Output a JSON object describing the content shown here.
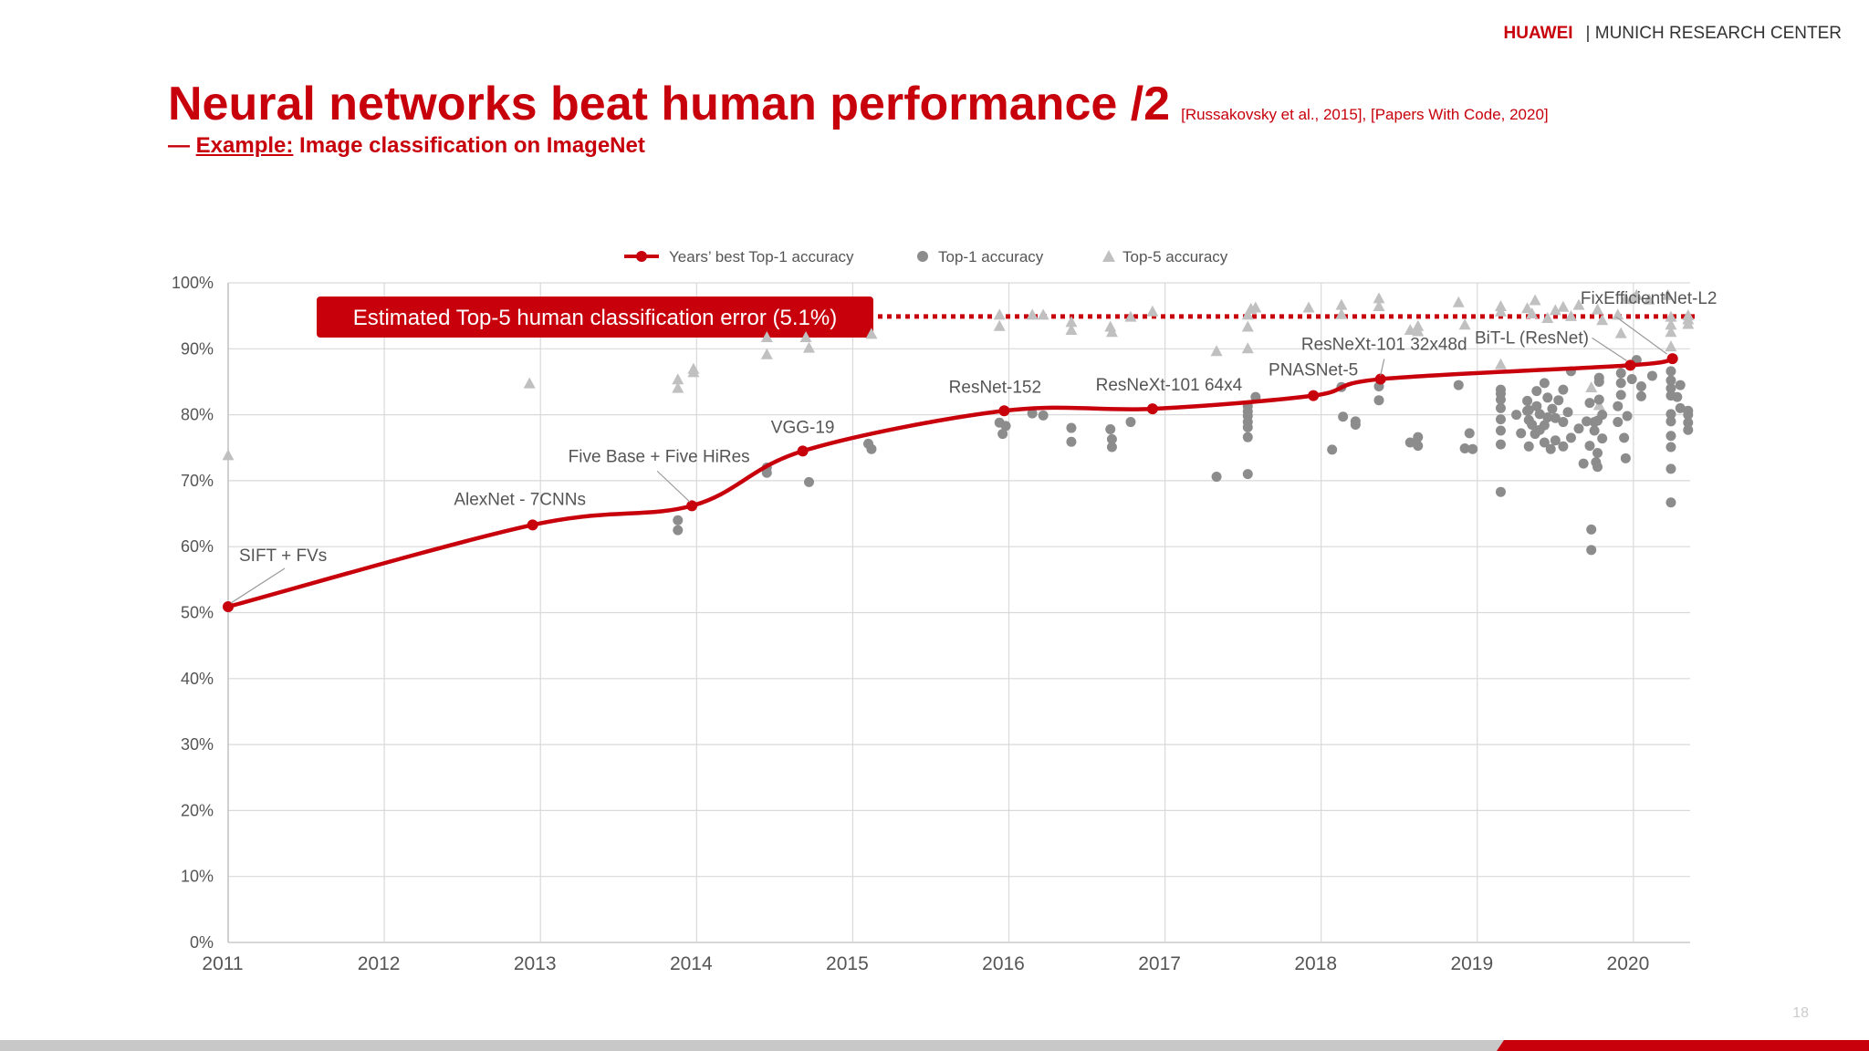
{
  "header": {
    "brand": "HUAWEI",
    "org": "| MUNICH RESEARCH CENTER"
  },
  "slide": {
    "title": "Neural networks beat human performance /2",
    "references": "[Russakovsky et al., 2015], [Papers With Code, 2020]",
    "subtitle_prefix": "— ",
    "subtitle_example": "Example:",
    "subtitle_rest": " Image classification on ImageNet",
    "page_number": "18"
  },
  "colors": {
    "accent": "#c7000b",
    "top1": "#8c8c8c",
    "top5": "#c0c0c0",
    "grid": "#d9d9d9"
  },
  "chart_data": {
    "type": "scatter",
    "xlim": [
      2011,
      2020.4
    ],
    "ylim": [
      0,
      100
    ],
    "x_ticks": [
      "2011",
      "2012",
      "2013",
      "2014",
      "2015",
      "2016",
      "2017",
      "2018",
      "2019",
      "2020"
    ],
    "y_ticks": [
      "0%",
      "10%",
      "20%",
      "30%",
      "40%",
      "50%",
      "60%",
      "70%",
      "80%",
      "90%",
      "100%"
    ],
    "grid": true,
    "legend_position": "top",
    "legend": [
      "Years’ best Top-1 accuracy",
      "Top-1 accuracy",
      "Top-5 accuracy"
    ],
    "human_error": {
      "label": "Estimated Top-5 human classification error (5.1%)",
      "y": 94.9
    },
    "series": [
      {
        "name": "Years’ best Top-1 accuracy",
        "type": "line",
        "points": [
          {
            "x": 2011.0,
            "y": 50.9,
            "label": "SIFT + FVs"
          },
          {
            "x": 2012.95,
            "y": 63.3,
            "label": "AlexNet - 7CNNs"
          },
          {
            "x": 2013.97,
            "y": 66.2,
            "label": "Five Base + Five HiRes"
          },
          {
            "x": 2014.68,
            "y": 74.5,
            "label": "VGG-19"
          },
          {
            "x": 2015.97,
            "y": 80.6,
            "label": "ResNet-152"
          },
          {
            "x": 2016.92,
            "y": 80.9,
            "label": "ResNeXt-101 64x4"
          },
          {
            "x": 2017.95,
            "y": 82.9,
            "label": "PNASNet-5"
          },
          {
            "x": 2018.38,
            "y": 85.4,
            "label": "ResNeXt-101 32x48d"
          },
          {
            "x": 2019.98,
            "y": 87.5,
            "label": "BiT-L (ResNet)"
          },
          {
            "x": 2020.25,
            "y": 88.5,
            "label": "FixEfficientNet-L2"
          }
        ]
      },
      {
        "name": "Top-1 accuracy",
        "type": "scatter",
        "points": [
          [
            13.88,
            64
          ],
          [
            13.88,
            62.5
          ],
          [
            14.45,
            72
          ],
          [
            14.45,
            71.2
          ],
          [
            14.72,
            69.8
          ],
          [
            15.1,
            75.6
          ],
          [
            15.12,
            74.8
          ],
          [
            15.94,
            78.8
          ],
          [
            15.96,
            77.1
          ],
          [
            15.98,
            78.3
          ],
          [
            16.15,
            80.2
          ],
          [
            16.22,
            79.9
          ],
          [
            16.4,
            78
          ],
          [
            16.4,
            75.9
          ],
          [
            16.65,
            77.8
          ],
          [
            16.66,
            76.3
          ],
          [
            16.66,
            75.1
          ],
          [
            16.78,
            78.9
          ],
          [
            17.33,
            70.6
          ],
          [
            17.53,
            71
          ],
          [
            17.53,
            76.6
          ],
          [
            17.53,
            78.1
          ],
          [
            17.53,
            78.9
          ],
          [
            17.53,
            79.8
          ],
          [
            17.53,
            80.5
          ],
          [
            17.53,
            81.3
          ],
          [
            17.58,
            82.7
          ],
          [
            18.07,
            74.7
          ],
          [
            18.13,
            84.2
          ],
          [
            18.14,
            79.7
          ],
          [
            18.22,
            79
          ],
          [
            18.22,
            78.5
          ],
          [
            18.37,
            82.2
          ],
          [
            18.37,
            84.3
          ],
          [
            18.57,
            75.8
          ],
          [
            18.62,
            76.6
          ],
          [
            18.62,
            75.3
          ],
          [
            18.88,
            84.5
          ],
          [
            18.92,
            74.9
          ],
          [
            18.95,
            77.2
          ],
          [
            18.97,
            74.8
          ],
          [
            19.15,
            68.3
          ],
          [
            19.15,
            75.5
          ],
          [
            19.15,
            77.6
          ],
          [
            19.15,
            79.3
          ],
          [
            19.15,
            81
          ],
          [
            19.15,
            82.3
          ],
          [
            19.15,
            83.2
          ],
          [
            19.15,
            83.8
          ],
          [
            19.25,
            80
          ],
          [
            19.28,
            77.2
          ],
          [
            19.32,
            80.6
          ],
          [
            19.32,
            82.1
          ],
          [
            19.33,
            75.2
          ],
          [
            19.33,
            79.2
          ],
          [
            19.33,
            80.7
          ],
          [
            19.35,
            78.5
          ],
          [
            19.37,
            77.1
          ],
          [
            19.38,
            81.3
          ],
          [
            19.38,
            83.6
          ],
          [
            19.4,
            77.7
          ],
          [
            19.4,
            80.1
          ],
          [
            19.43,
            75.8
          ],
          [
            19.43,
            78.4
          ],
          [
            19.43,
            84.8
          ],
          [
            19.45,
            79.6
          ],
          [
            19.45,
            82.6
          ],
          [
            19.47,
            74.8
          ],
          [
            19.48,
            80.9
          ],
          [
            19.5,
            76.1
          ],
          [
            19.5,
            79.5
          ],
          [
            19.52,
            82.2
          ],
          [
            19.55,
            75.2
          ],
          [
            19.55,
            78.9
          ],
          [
            19.55,
            83.8
          ],
          [
            19.58,
            80.4
          ],
          [
            19.6,
            76.5
          ],
          [
            19.6,
            86.6
          ],
          [
            19.65,
            77.9
          ],
          [
            19.68,
            72.6
          ],
          [
            19.7,
            79
          ],
          [
            19.72,
            75.3
          ],
          [
            19.72,
            81.8
          ],
          [
            19.75,
            77.6
          ],
          [
            19.75,
            78.9
          ],
          [
            19.77,
            74.2
          ],
          [
            19.8,
            76.4
          ],
          [
            19.78,
            82.3
          ],
          [
            19.8,
            80
          ],
          [
            19.73,
            62.6
          ],
          [
            19.73,
            59.5
          ],
          [
            19.76,
            72.8
          ],
          [
            19.77,
            72.1
          ],
          [
            19.77,
            79.1
          ],
          [
            19.78,
            85
          ],
          [
            19.78,
            85.6
          ],
          [
            19.9,
            78.9
          ],
          [
            19.9,
            81.3
          ],
          [
            19.92,
            83
          ],
          [
            19.92,
            84.8
          ],
          [
            19.92,
            86.3
          ],
          [
            19.94,
            76.5
          ],
          [
            19.95,
            73.4
          ],
          [
            19.96,
            79.8
          ],
          [
            19.99,
            85.4
          ],
          [
            20.02,
            88.3
          ],
          [
            20.05,
            82.8
          ],
          [
            20.05,
            84.3
          ],
          [
            20.12,
            85.9
          ],
          [
            20.24,
            66.7
          ],
          [
            20.24,
            71.8
          ],
          [
            20.24,
            75.1
          ],
          [
            20.24,
            76.8
          ],
          [
            20.24,
            79
          ],
          [
            20.24,
            80.1
          ],
          [
            20.24,
            82.9
          ],
          [
            20.24,
            84
          ],
          [
            20.24,
            85.2
          ],
          [
            20.24,
            86.6
          ],
          [
            20.28,
            82.7
          ],
          [
            20.3,
            84.5
          ],
          [
            20.3,
            81
          ],
          [
            20.35,
            77.7
          ],
          [
            20.35,
            78.8
          ],
          [
            20.35,
            80
          ],
          [
            20.35,
            80.6
          ]
        ]
      },
      {
        "name": "Top-5 accuracy",
        "type": "scatter",
        "points": [
          [
            11.0,
            73.8
          ],
          [
            12.93,
            84.7
          ],
          [
            13.88,
            85.3
          ],
          [
            13.88,
            84
          ],
          [
            13.98,
            86.9
          ],
          [
            13.98,
            86.4
          ],
          [
            14.45,
            91.7
          ],
          [
            14.45,
            89.1
          ],
          [
            14.7,
            91.7
          ],
          [
            14.72,
            90.1
          ],
          [
            15.12,
            92.2
          ],
          [
            15.94,
            93.4
          ],
          [
            15.94,
            95.1
          ],
          [
            16.15,
            95.1
          ],
          [
            16.22,
            95.1
          ],
          [
            16.4,
            94
          ],
          [
            16.4,
            92.8
          ],
          [
            16.65,
            93.3
          ],
          [
            16.66,
            92.5
          ],
          [
            16.78,
            94.8
          ],
          [
            16.92,
            95.6
          ],
          [
            17.33,
            89.6
          ],
          [
            17.53,
            90
          ],
          [
            17.53,
            93.3
          ],
          [
            17.53,
            95.1
          ],
          [
            17.55,
            96
          ],
          [
            17.58,
            96.2
          ],
          [
            17.92,
            96.2
          ],
          [
            18.13,
            96.6
          ],
          [
            18.13,
            95.2
          ],
          [
            18.37,
            96.4
          ],
          [
            18.37,
            97.6
          ],
          [
            18.57,
            92.8
          ],
          [
            18.62,
            93.4
          ],
          [
            18.62,
            92.6
          ],
          [
            18.88,
            97
          ],
          [
            18.92,
            93.6
          ],
          [
            19.15,
            87.6
          ],
          [
            19.15,
            95.6
          ],
          [
            19.15,
            96.4
          ],
          [
            19.32,
            96.1
          ],
          [
            19.35,
            95.3
          ],
          [
            19.37,
            97.3
          ],
          [
            19.45,
            94.6
          ],
          [
            19.5,
            95.8
          ],
          [
            19.55,
            96.3
          ],
          [
            19.6,
            94.9
          ],
          [
            19.65,
            96.6
          ],
          [
            19.73,
            84.1
          ],
          [
            19.77,
            95.9
          ],
          [
            19.78,
            81.4
          ],
          [
            19.8,
            94.3
          ],
          [
            19.9,
            95.1
          ],
          [
            19.92,
            92.3
          ],
          [
            19.95,
            97.5
          ],
          [
            20.0,
            97.6
          ],
          [
            20.02,
            98.1
          ],
          [
            20.1,
            97.4
          ],
          [
            20.22,
            98.1
          ],
          [
            20.24,
            93.6
          ],
          [
            20.24,
            92.5
          ],
          [
            20.24,
            90.3
          ],
          [
            20.24,
            94.8
          ],
          [
            20.35,
            95
          ],
          [
            20.35,
            93.7
          ],
          [
            20.35,
            94.4
          ]
        ]
      }
    ]
  }
}
